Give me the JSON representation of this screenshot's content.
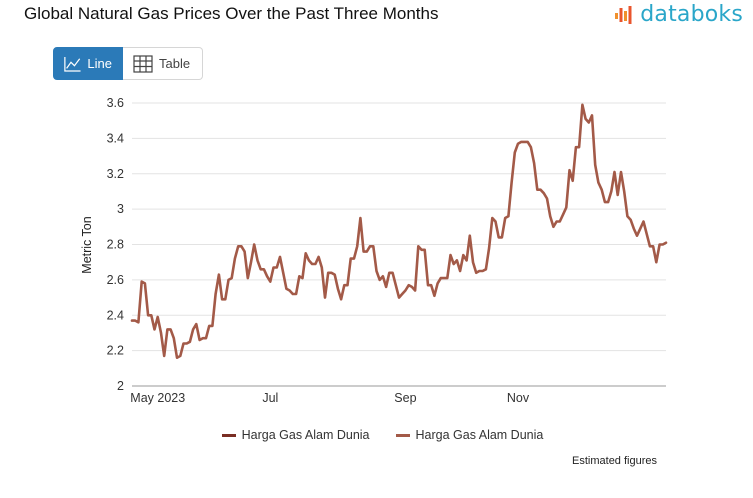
{
  "title": "Global Natural Gas Prices Over the Past Three Months",
  "brand": {
    "name": "databoks",
    "color": "#2aa6c9",
    "icon": "databoks-logo-icon"
  },
  "toggle": {
    "line_label": "Line",
    "line_icon": "line-chart-icon",
    "table_label": "Table",
    "table_icon": "table-grid-icon",
    "active_color": "#2b7ab8"
  },
  "legend": {
    "items": [
      {
        "label": "Harga Gas Alam Dunia",
        "color": "#7a2e24"
      },
      {
        "label": "Harga Gas Alam Dunia",
        "color": "#a35a48"
      }
    ]
  },
  "note": "Estimated figures",
  "chart_data": {
    "type": "line",
    "ylabel": "Metric Ton",
    "ylim": [
      2,
      3.6
    ],
    "yticks": [
      "2",
      "2.2",
      "2.4",
      "2.6",
      "2.8",
      "3",
      "3.2",
      "3.4",
      "3.6"
    ],
    "xticks": [
      {
        "label": "May 2023",
        "index": 8
      },
      {
        "label": "Jul",
        "index": 43
      },
      {
        "label": "Sep",
        "index": 85
      },
      {
        "label": "Nov",
        "index": 120
      }
    ],
    "grid": true,
    "series": [
      {
        "color": "#a35a48",
        "values": [
          2.37,
          2.37,
          2.36,
          2.59,
          2.58,
          2.4,
          2.4,
          2.32,
          2.39,
          2.3,
          2.17,
          2.32,
          2.32,
          2.27,
          2.16,
          2.17,
          2.24,
          2.24,
          2.25,
          2.32,
          2.35,
          2.26,
          2.27,
          2.27,
          2.34,
          2.34,
          2.52,
          2.63,
          2.49,
          2.49,
          2.6,
          2.61,
          2.72,
          2.79,
          2.79,
          2.76,
          2.61,
          2.7,
          2.8,
          2.71,
          2.66,
          2.66,
          2.62,
          2.59,
          2.67,
          2.67,
          2.73,
          2.64,
          2.55,
          2.54,
          2.52,
          2.52,
          2.62,
          2.61,
          2.75,
          2.71,
          2.69,
          2.69,
          2.73,
          2.67,
          2.5,
          2.64,
          2.64,
          2.63,
          2.55,
          2.49,
          2.57,
          2.57,
          2.72,
          2.72,
          2.79,
          2.95,
          2.76,
          2.76,
          2.79,
          2.79,
          2.65,
          2.6,
          2.62,
          2.56,
          2.64,
          2.64,
          2.57,
          2.5,
          2.52,
          2.54,
          2.57,
          2.56,
          2.54,
          2.79,
          2.77,
          2.77,
          2.57,
          2.57,
          2.51,
          2.58,
          2.61,
          2.61,
          2.61,
          2.74,
          2.69,
          2.71,
          2.65,
          2.74,
          2.71,
          2.85,
          2.7,
          2.64,
          2.65,
          2.65,
          2.66,
          2.78,
          2.95,
          2.93,
          2.84,
          2.84,
          2.95,
          2.96,
          3.15,
          3.32,
          3.37,
          3.38,
          3.38,
          3.38,
          3.35,
          3.26,
          3.11,
          3.11,
          3.09,
          3.06,
          2.96,
          2.9,
          2.93,
          2.93,
          2.97,
          3.01,
          3.22,
          3.16,
          3.35,
          3.35,
          3.59,
          3.51,
          3.49,
          3.53,
          3.25,
          3.15,
          3.11,
          3.04,
          3.04,
          3.1,
          3.21,
          3.08,
          3.21,
          3.1,
          2.96,
          2.94,
          2.89,
          2.85,
          2.89,
          2.93,
          2.86,
          2.79,
          2.79,
          2.7,
          2.8,
          2.8,
          2.81
        ]
      }
    ]
  }
}
